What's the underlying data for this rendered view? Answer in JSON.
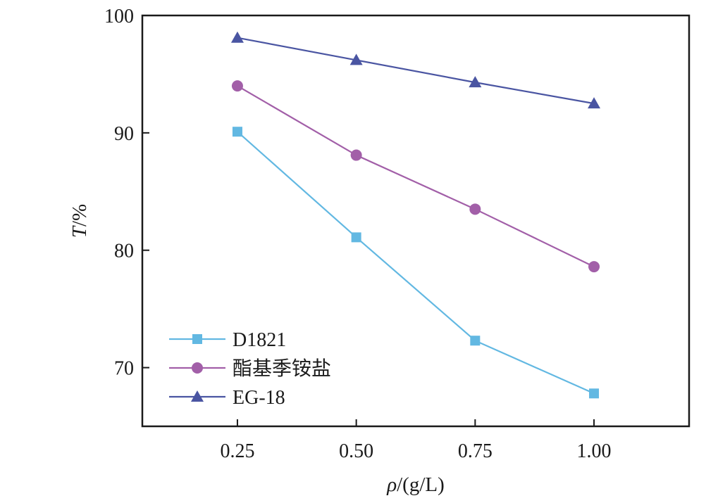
{
  "chart_data": {
    "type": "line",
    "x": [
      0.25,
      0.5,
      0.75,
      1.0
    ],
    "x_tick_labels": [
      "0.25",
      "0.50",
      "0.75",
      "1.00"
    ],
    "y_ticks": [
      70,
      80,
      90,
      100
    ],
    "xlim": [
      0.05,
      1.2
    ],
    "ylim": [
      65,
      100
    ],
    "xlabel": {
      "italic": "ρ",
      "rest": "/(g/L)"
    },
    "ylabel": {
      "italic": "T",
      "rest": "/%"
    },
    "grid": false,
    "legend_position": "bottom-left",
    "series": [
      {
        "name": "D1821",
        "marker": "square",
        "color": "#62b8e2",
        "values": [
          90.1,
          81.1,
          72.3,
          67.8
        ]
      },
      {
        "name": "酯基季铵盐",
        "marker": "circle",
        "color": "#a25fa8",
        "values": [
          94.0,
          88.1,
          83.5,
          78.6
        ]
      },
      {
        "name": "EG-18",
        "marker": "triangle",
        "color": "#4a55a2",
        "values": [
          98.1,
          96.2,
          94.3,
          92.5
        ]
      }
    ]
  }
}
